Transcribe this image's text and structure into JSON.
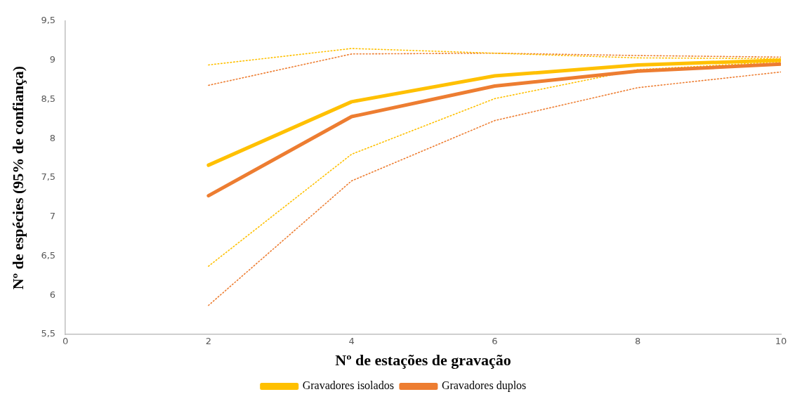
{
  "chart_data": {
    "type": "line",
    "xlabel": "Nº de estações de gravação",
    "ylabel": "Nº de espécies (95% de confiança)",
    "x": [
      2,
      4,
      6,
      8,
      10
    ],
    "series": [
      {
        "name": "Gravadores isolados",
        "color": "#ffc000",
        "values": [
          7.66,
          8.47,
          8.8,
          8.94,
          9.0
        ],
        "line_style": "solid"
      },
      {
        "name": "Gravadores duplos",
        "color": "#ed7d31",
        "values": [
          7.27,
          8.28,
          8.67,
          8.86,
          8.95
        ],
        "line_style": "solid"
      },
      {
        "color": "#ffc000",
        "values": [
          8.94,
          9.15,
          9.09,
          9.03,
          9.02
        ],
        "line_style": "dotted"
      },
      {
        "color": "#ffc000",
        "values": [
          6.37,
          7.8,
          8.51,
          8.88,
          8.98
        ],
        "line_style": "dotted"
      },
      {
        "color": "#ed7d31",
        "values": [
          8.68,
          9.08,
          9.09,
          9.06,
          9.04
        ],
        "line_style": "dotted"
      },
      {
        "color": "#ed7d31",
        "values": [
          5.87,
          7.46,
          8.23,
          8.65,
          8.85
        ],
        "line_style": "dotted"
      }
    ],
    "xlim": [
      0,
      10
    ],
    "xticks": [
      0,
      2,
      4,
      6,
      8,
      10
    ],
    "ylim": [
      5.5,
      9.5
    ],
    "yticks": [
      {
        "value": 5.5,
        "label": "5,5"
      },
      6,
      {
        "value": 6.5,
        "label": "6,5"
      },
      7,
      {
        "value": 7.5,
        "label": "7,5"
      },
      8,
      {
        "value": 8.5,
        "label": "8,5"
      },
      9,
      {
        "value": 9.5,
        "label": "9,5"
      }
    ],
    "grid": false,
    "legend": "bottom",
    "marker": "none"
  }
}
